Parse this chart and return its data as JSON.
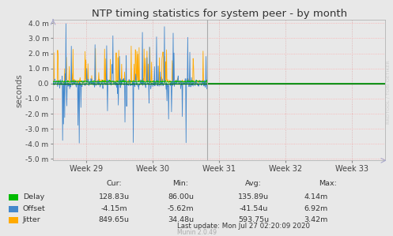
{
  "title": "NTP timing statistics for system peer - by month",
  "ylabel": "seconds",
  "background_color": "#e8e8e8",
  "plot_bg_color": "#e8e8e8",
  "grid_color_h": "#ffaaaa",
  "grid_color_v": "#ddaaaa",
  "ylim": [
    -0.0051,
    0.0042
  ],
  "yticks": [
    -0.005,
    -0.004,
    -0.003,
    -0.002,
    -0.001,
    0.0,
    0.001,
    0.002,
    0.003,
    0.004
  ],
  "ytick_labels": [
    "-5.0 m",
    "-4.0 m",
    "-3.0 m",
    "-2.0 m",
    "-1.0 m",
    "0.0",
    "1.0 m",
    "2.0 m",
    "3.0 m",
    "4.0 m"
  ],
  "xtick_labels": [
    "Week 29",
    "Week 30",
    "Week 31",
    "Week 32",
    "Week 33"
  ],
  "delay_color": "#00bb00",
  "offset_color": "#4488cc",
  "jitter_color": "#ffaa00",
  "zero_line_color": "#007700",
  "vline_color": "#aaaaaa",
  "arrow_color": "#aaaacc",
  "watermark": "RRDTOOL / TOBI OETIKER",
  "footer_text": "Last update: Mon Jul 27 02:20:09 2020",
  "munin_text": "Munin 2.0.49",
  "stats_header": [
    "Cur:",
    "Min:",
    "Avg:",
    "Max:"
  ],
  "stats_labels": [
    "Delay",
    "Offset",
    "Jitter"
  ],
  "stats_cur": [
    "128.83u",
    "-4.15m",
    "849.65u"
  ],
  "stats_min": [
    "86.00u",
    "-5.62m",
    "34.48u"
  ],
  "stats_avg": [
    "135.89u",
    "-41.54u",
    "593.75u"
  ],
  "stats_max": [
    "4.14m",
    "6.92m",
    "3.42m"
  ]
}
